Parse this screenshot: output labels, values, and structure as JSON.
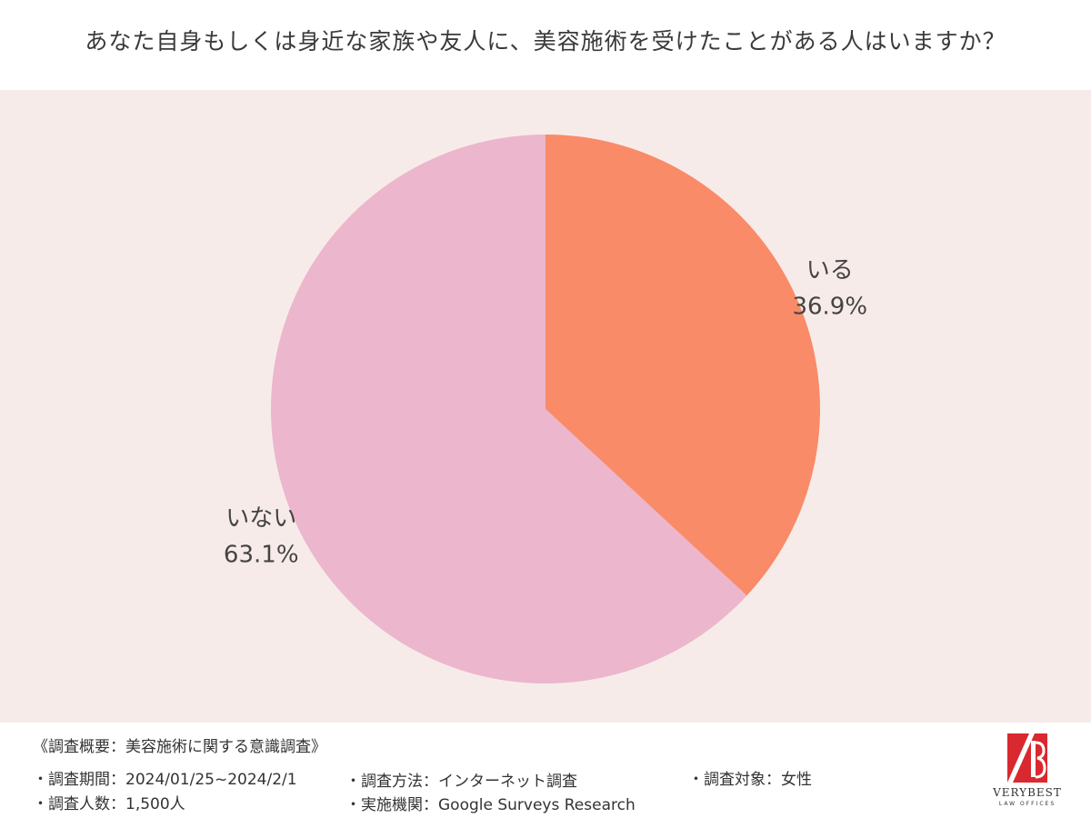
{
  "title": "あなた自身もしくは身近な家族や友人に、美容施術を受けたことがある人はいますか？",
  "chart_data": {
    "type": "pie",
    "title": "あなた自身もしくは身近な家族や友人に、美容施術を受けたことがある人はいますか？",
    "slices": [
      {
        "label": "いる",
        "value": 36.9,
        "value_label": "36.9%",
        "color": "#f98b68"
      },
      {
        "label": "いない",
        "value": 63.1,
        "value_label": "63.1%",
        "color": "#ecb6cc"
      }
    ],
    "start_angle": "12 o'clock",
    "direction": "clockwise",
    "legend": "none",
    "background_color": "#f7ebe9"
  },
  "survey": {
    "heading": "《調査概要：美容施術に関する意識調査》",
    "period": "・調査期間：2024/01/25~2024/2/1",
    "method": "・調査方法：インターネット調査",
    "target": "・調査対象：女性",
    "respondents": "・調査人数：1,500人",
    "organization": "・実施機関：Google Surveys  Research"
  },
  "logo": {
    "name": "VERYBEST",
    "sub": "LAW OFFICES",
    "color": "#d9282f"
  }
}
